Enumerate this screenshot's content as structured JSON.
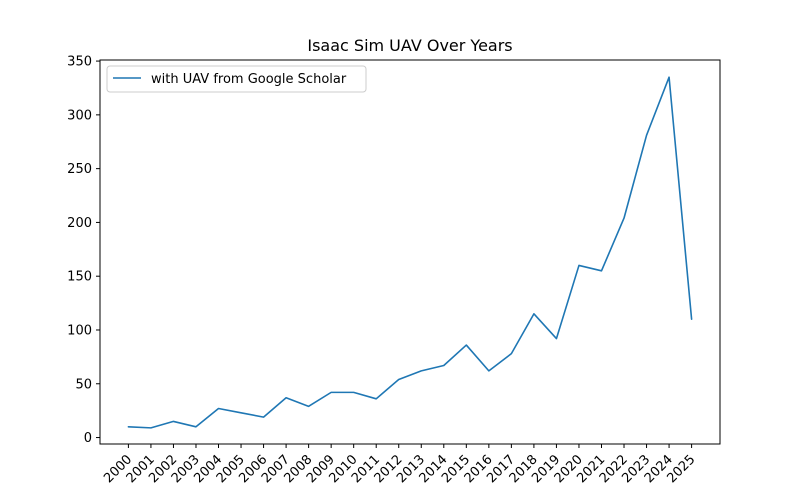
{
  "chart_data": {
    "type": "line",
    "title": "Isaac Sim UAV Over Years",
    "xlabel": "",
    "ylabel": "",
    "x": [
      "2000",
      "2001",
      "2002",
      "2003",
      "2004",
      "2005",
      "2006",
      "2007",
      "2008",
      "2009",
      "2010",
      "2011",
      "2012",
      "2013",
      "2014",
      "2015",
      "2016",
      "2017",
      "2018",
      "2019",
      "2020",
      "2021",
      "2022",
      "2023",
      "2024",
      "2025"
    ],
    "series": [
      {
        "name": "with UAV from Google Scholar",
        "color": "#1f77b4",
        "values": [
          10,
          9,
          15,
          10,
          27,
          23,
          19,
          37,
          29,
          42,
          42,
          36,
          54,
          62,
          67,
          86,
          62,
          78,
          115,
          92,
          160,
          155,
          204,
          281,
          335,
          110
        ]
      }
    ],
    "ylim": [
      -6,
      351
    ],
    "yticks": [
      0,
      50,
      100,
      150,
      200,
      250,
      300,
      350
    ],
    "grid": false,
    "legend_position": "upper left"
  }
}
